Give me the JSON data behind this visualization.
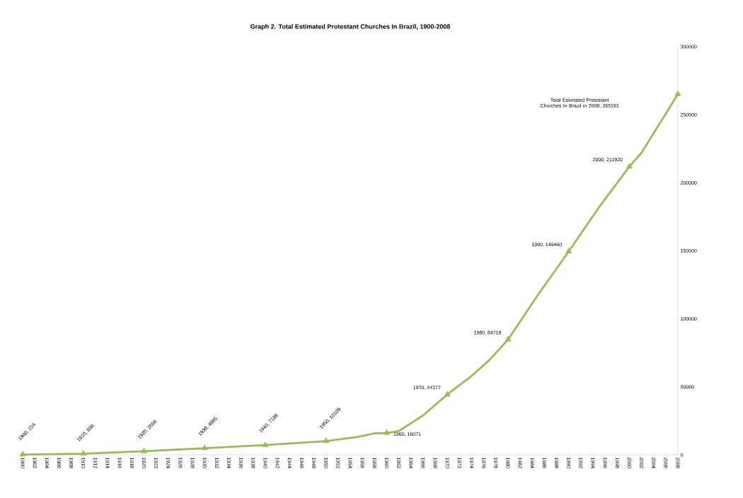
{
  "chart_data": {
    "type": "line",
    "title": "Graph 2. Total Estimated Protestant Churches In Brazil, 1900-2008",
    "series": [
      {
        "color": "#9bbb59",
        "marker": "none",
        "x": [
          1900,
          1910,
          1920,
          1930,
          1940,
          1950,
          1955,
          1958,
          1960,
          1962,
          1966,
          1970,
          1974,
          1977,
          1980,
          1985,
          1990,
          1995,
          2000,
          2002,
          2008
        ],
        "values": [
          224,
          838,
          2656,
          4885,
          7186,
          10109,
          13000,
          15800,
          16071,
          17500,
          29000,
          44377,
          58000,
          70000,
          84718,
          118000,
          149460,
          182000,
          211920,
          222000,
          265191
        ]
      },
      {
        "type": "scatter",
        "color": "#9bbb59",
        "marker": "triangle",
        "x": [
          1900,
          1910,
          1920,
          1930,
          1940,
          1950,
          1960,
          1970,
          1980,
          1990,
          2000,
          2008
        ],
        "values": [
          224,
          838,
          2656,
          4885,
          7186,
          10109,
          16071,
          44377,
          84718,
          149460,
          211920,
          265191
        ]
      }
    ],
    "annotations": [
      {
        "text": "1900, 224",
        "x": 1900,
        "y": 224
      },
      {
        "text": "1910, 838",
        "x": 1910,
        "y": 838
      },
      {
        "text": "1920, 2656",
        "x": 1920,
        "y": 2656
      },
      {
        "text": "1930, 4885",
        "x": 1930,
        "y": 4885
      },
      {
        "text": "1940, 7186",
        "x": 1940,
        "y": 7186
      },
      {
        "text": "1950, 10109",
        "x": 1950,
        "y": 10109
      },
      {
        "text": "1960, 16071",
        "x": 1960,
        "y": 16071
      },
      {
        "text": "1970, 44377",
        "x": 1970,
        "y": 44377
      },
      {
        "text": "1980, 84718",
        "x": 1980,
        "y": 84718
      },
      {
        "text": "1990, 149460",
        "x": 1990,
        "y": 149460
      },
      {
        "text": "2000, 211920",
        "x": 2000,
        "y": 211920
      },
      "Total Estimated Protestant Churches In Brazil in 2008, 265191"
    ],
    "xlim": [
      1900,
      2008
    ],
    "xticks": [
      1900,
      1902,
      1904,
      1906,
      1908,
      1910,
      1912,
      1914,
      1916,
      1918,
      1920,
      1922,
      1924,
      1926,
      1928,
      1930,
      1932,
      1934,
      1936,
      1938,
      1940,
      1942,
      1944,
      1946,
      1948,
      1950,
      1952,
      1954,
      1956,
      1958,
      1960,
      1962,
      1964,
      1966,
      1968,
      1970,
      1972,
      1974,
      1976,
      1978,
      1980,
      1982,
      1984,
      1986,
      1988,
      1990,
      1992,
      1994,
      1996,
      1998,
      2000,
      2002,
      2004,
      2006,
      2008
    ],
    "ylim": [
      0,
      300000
    ],
    "yticks": [
      0,
      50000,
      100000,
      150000,
      200000,
      250000,
      300000
    ]
  }
}
